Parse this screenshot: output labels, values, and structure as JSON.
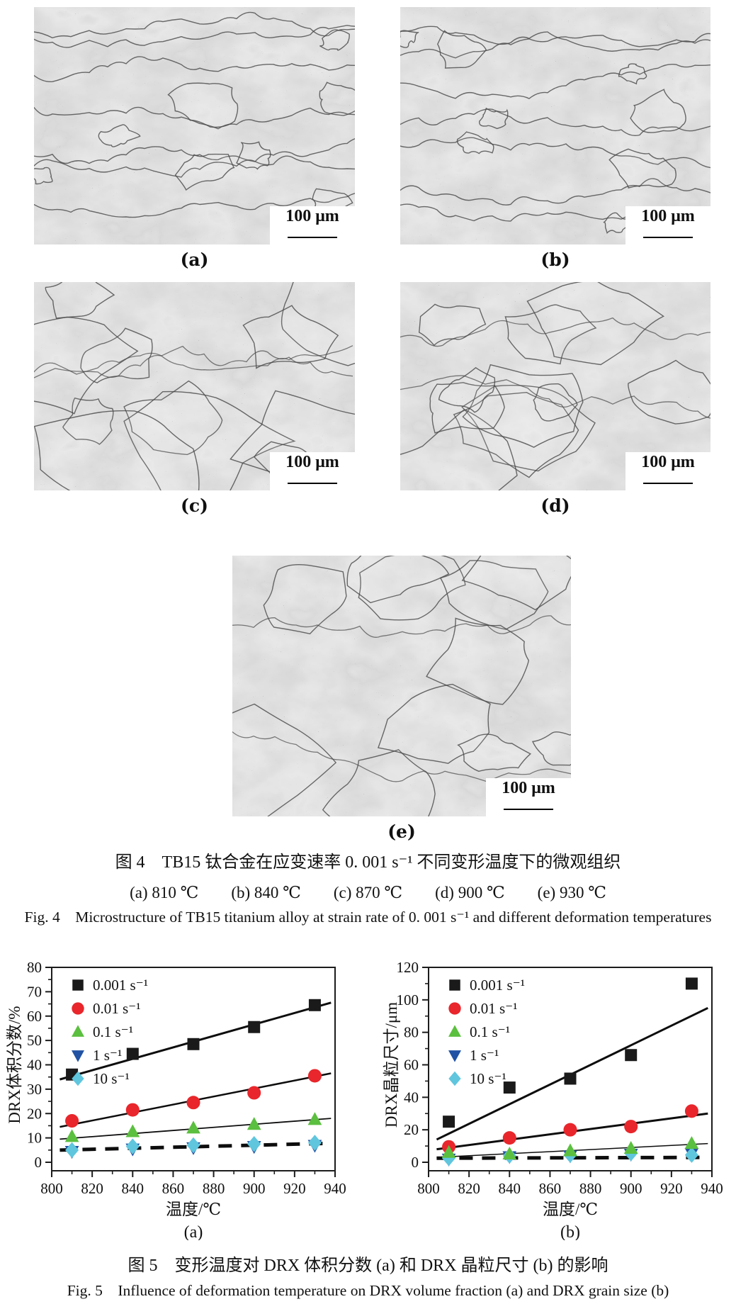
{
  "figure4": {
    "caption_cn": "图 4　TB15 钛合金在应变速率 0. 001 s⁻¹ 不同变形温度下的微观组织",
    "caption_temps": "(a) 810 ℃　　(b) 840 ℃　　(c) 870 ℃　　(d) 900 ℃　　(e) 930 ℃",
    "caption_en": "Fig. 4　Microstructure of TB15 titanium alloy at strain rate of 0. 001 s⁻¹ and different deformation temperatures",
    "panels": [
      {
        "id": "a",
        "label": "(a)",
        "scale_label": "100 μm",
        "texture": "elongated"
      },
      {
        "id": "b",
        "label": "(b)",
        "scale_label": "100 μm",
        "texture": "elongated"
      },
      {
        "id": "c",
        "label": "(c)",
        "scale_label": "100 μm",
        "texture": "equiaxed"
      },
      {
        "id": "d",
        "label": "(d)",
        "scale_label": "100 μm",
        "texture": "equiaxed"
      },
      {
        "id": "e",
        "label": "(e)",
        "scale_label": "100 μm",
        "texture": "equiaxed"
      }
    ]
  },
  "figure5": {
    "caption_cn": "图 5　变形温度对 DRX 体积分数 (a) 和 DRX 晶粒尺寸 (b) 的影响",
    "caption_en": "Fig. 5　Influence of deformation temperature on DRX volume fraction (a) and DRX grain size (b)"
  },
  "chart_data": [
    {
      "type": "scatter",
      "panel_label": "(a)",
      "xlabel": "温度/℃",
      "ylabel": "DRX体积分数/%",
      "xlim": [
        800,
        940
      ],
      "ylim": [
        0,
        80
      ],
      "xticks": [
        800,
        820,
        840,
        860,
        880,
        900,
        920,
        940
      ],
      "yticks": [
        0,
        10,
        20,
        30,
        40,
        50,
        60,
        70,
        80
      ],
      "y_minor_step": 5,
      "x_minor_step": 10,
      "grid": false,
      "legend_position": "top-left",
      "x": [
        810,
        840,
        870,
        900,
        930
      ],
      "series": [
        {
          "name": "0.001 s⁻¹",
          "marker": "square",
          "color": "#1a1a1a",
          "values": [
            36,
            44.5,
            48.5,
            55.5,
            64.5
          ],
          "fit_line": {
            "x": [
              804,
              938
            ],
            "y": [
              34,
              65.5
            ],
            "style": "solid",
            "width": 3
          }
        },
        {
          "name": "0.01 s⁻¹",
          "marker": "circle",
          "color": "#e8262b",
          "values": [
            17,
            21.5,
            24.5,
            28.5,
            35.5
          ],
          "fit_line": {
            "x": [
              804,
              938
            ],
            "y": [
              14.5,
              36.5
            ],
            "style": "solid",
            "width": 2.5
          }
        },
        {
          "name": "0.1 s⁻¹",
          "marker": "triangle-up",
          "color": "#5bbf3f",
          "values": [
            10.5,
            12.5,
            14,
            15.5,
            17.5
          ],
          "fit_line": {
            "x": [
              804,
              938
            ],
            "y": [
              9.5,
              18
            ],
            "style": "solid",
            "width": 1.8
          }
        },
        {
          "name": "1 s⁻¹",
          "marker": "triangle-down",
          "color": "#2152a3",
          "values": [
            4.5,
            5.5,
            6,
            6.5,
            7
          ],
          "fit_line": null
        },
        {
          "name": "10 s⁻¹",
          "marker": "diamond",
          "color": "#5fc6de",
          "values": [
            5,
            6.5,
            7,
            7.5,
            8
          ],
          "fit_line": {
            "x": [
              804,
              938
            ],
            "y": [
              5,
              7.8
            ],
            "style": "dashed",
            "width": 5
          }
        }
      ]
    },
    {
      "type": "scatter",
      "panel_label": "(b)",
      "xlabel": "温度/℃",
      "ylabel": "DRX晶粒尺寸/μm",
      "xlim": [
        800,
        940
      ],
      "ylim": [
        0,
        120
      ],
      "xticks": [
        800,
        820,
        840,
        860,
        880,
        900,
        920,
        940
      ],
      "yticks": [
        0,
        20,
        40,
        60,
        80,
        100,
        120
      ],
      "y_minor_step": 10,
      "x_minor_step": 10,
      "grid": false,
      "legend_position": "top-left",
      "x": [
        810,
        840,
        870,
        900,
        930
      ],
      "series": [
        {
          "name": "0.001 s⁻¹",
          "marker": "square",
          "color": "#1a1a1a",
          "values": [
            25,
            46,
            51.5,
            66,
            110
          ],
          "fit_line": {
            "x": [
              804,
              938
            ],
            "y": [
              14,
              95
            ],
            "style": "solid",
            "width": 3
          }
        },
        {
          "name": "0.01 s⁻¹",
          "marker": "circle",
          "color": "#e8262b",
          "values": [
            9.5,
            15,
            20,
            22,
            31.5
          ],
          "fit_line": {
            "x": [
              804,
              938
            ],
            "y": [
              8,
              30
            ],
            "style": "solid",
            "width": 3
          }
        },
        {
          "name": "0.1 s⁻¹",
          "marker": "triangle-up",
          "color": "#5bbf3f",
          "values": [
            6,
            5,
            7,
            8.5,
            11.5
          ],
          "fit_line": {
            "x": [
              804,
              938
            ],
            "y": [
              3,
              11.5
            ],
            "style": "solid",
            "width": 1.5
          }
        },
        {
          "name": "1 s⁻¹",
          "marker": "triangle-down",
          "color": "#2152a3",
          "values": [
            2,
            3.5,
            4,
            5,
            5.5
          ],
          "fit_line": null
        },
        {
          "name": "10 s⁻¹",
          "marker": "diamond",
          "color": "#5fc6de",
          "values": [
            2.5,
            4,
            4.5,
            5.5,
            4.5
          ],
          "fit_line": {
            "x": [
              804,
              938
            ],
            "y": [
              2.5,
              3
            ],
            "style": "dashed",
            "width": 5
          }
        }
      ]
    }
  ]
}
